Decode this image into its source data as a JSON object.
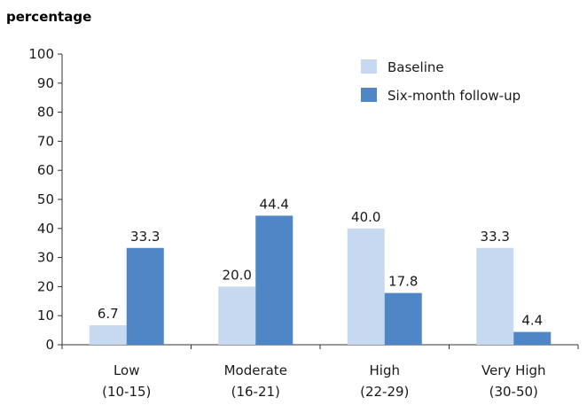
{
  "chart_data": {
    "type": "bar",
    "ylabel": "percentage",
    "xlabel": "",
    "ylim": [
      0,
      100
    ],
    "yticks": [
      0,
      10,
      20,
      30,
      40,
      50,
      60,
      70,
      80,
      90,
      100
    ],
    "categories": [
      {
        "name": "Low",
        "range": "(10-15)"
      },
      {
        "name": "Moderate",
        "range": "(16-21)"
      },
      {
        "name": "High",
        "range": "(22-29)"
      },
      {
        "name": "Very High",
        "range": "(30-50)"
      }
    ],
    "series": [
      {
        "name": "Baseline",
        "color": "#c6d9f0",
        "values": [
          6.7,
          20.0,
          40.0,
          33.3
        ],
        "labels": [
          "6.7",
          "20.0",
          "40.0",
          "33.3"
        ]
      },
      {
        "name": "Six-month follow-up",
        "color": "#4f86c6",
        "values": [
          33.3,
          44.4,
          17.8,
          4.4
        ],
        "labels": [
          "33.3",
          "44.4",
          "17.8",
          "4.4"
        ]
      }
    ],
    "legend_position": "top-right",
    "grid": false
  }
}
